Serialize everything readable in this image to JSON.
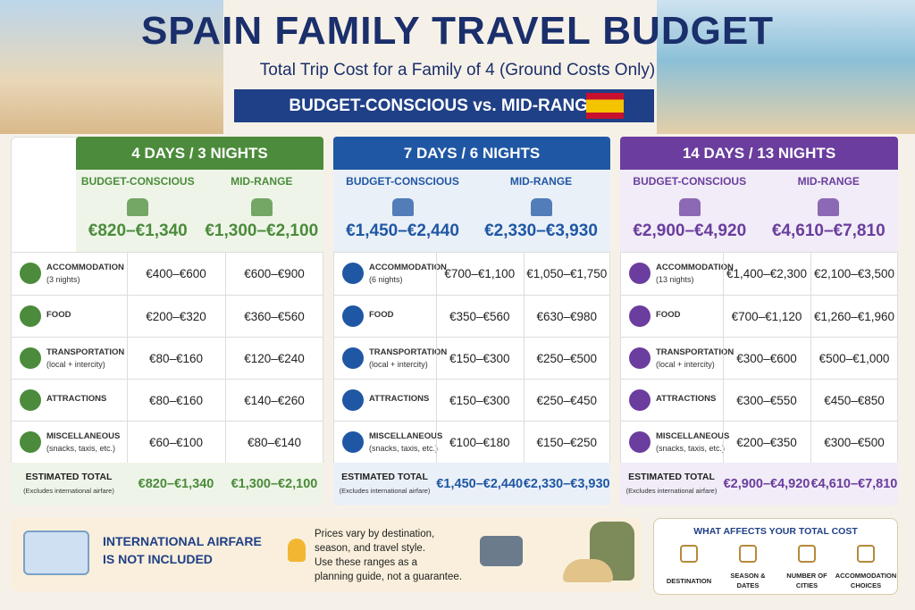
{
  "header": {
    "title": "SPAIN FAMILY TRAVEL BUDGET",
    "subtitle": "Total Trip Cost for a Family of 4 (Ground Costs Only)",
    "banner": "BUDGET-CONSCIOUS vs. MID-RANGE"
  },
  "plans": [
    {
      "title": "4 DAYS / 3 NIGHTS",
      "color": "#4b8b3b",
      "tint": "#eef5e8",
      "columns": [
        "BUDGET-CONSCIOUS",
        "MID-RANGE"
      ],
      "totals": [
        "€820–€1,340",
        "€1,300–€2,100"
      ],
      "rows": [
        {
          "label": "ACCOMMODATION",
          "note": "(3 nights)",
          "values": [
            "€400–€600",
            "€600–€900"
          ]
        },
        {
          "label": "FOOD",
          "values": [
            "€200–€320",
            "€360–€560"
          ]
        },
        {
          "label": "TRANSPORTATION",
          "note": "(local + intercity)",
          "values": [
            "€80–€160",
            "€120–€240"
          ]
        },
        {
          "label": "ATTRACTIONS",
          "values": [
            "€80–€160",
            "€140–€260"
          ]
        },
        {
          "label": "MISCELLANEOUS",
          "note": "(snacks, taxis, etc.)",
          "values": [
            "€60–€100",
            "€80–€140"
          ]
        }
      ],
      "total": {
        "label": "ESTIMATED TOTAL",
        "note": "(Excludes international airfare)",
        "values": [
          "€820–€1,340",
          "€1,300–€2,100"
        ]
      }
    },
    {
      "title": "7 DAYS / 6 NIGHTS",
      "color": "#1f57a4",
      "tint": "#eaf0f8",
      "columns": [
        "BUDGET-CONSCIOUS",
        "MID-RANGE"
      ],
      "totals": [
        "€1,450–€2,440",
        "€2,330–€3,930"
      ],
      "rows": [
        {
          "label": "ACCOMMODATION",
          "note": "(6 nights)",
          "values": [
            "€700–€1,100",
            "€1,050–€1,750"
          ]
        },
        {
          "label": "FOOD",
          "values": [
            "€350–€560",
            "€630–€980"
          ]
        },
        {
          "label": "TRANSPORTATION",
          "note": "(local + intercity)",
          "values": [
            "€150–€300",
            "€250–€500"
          ]
        },
        {
          "label": "ATTRACTIONS",
          "values": [
            "€150–€300",
            "€250–€450"
          ]
        },
        {
          "label": "MISCELLANEOUS",
          "note": "(snacks, taxis, etc.)",
          "values": [
            "€100–€180",
            "€150–€250"
          ]
        }
      ],
      "total": {
        "label": "ESTIMATED TOTAL",
        "note": "(Excludes international airfare)",
        "values": [
          "€1,450–€2,440",
          "€2,330–€3,930"
        ]
      }
    },
    {
      "title": "14 DAYS / 13 NIGHTS",
      "color": "#6a3d9e",
      "tint": "#f1ecf7",
      "columns": [
        "BUDGET-CONSCIOUS",
        "MID-RANGE"
      ],
      "totals": [
        "€2,900–€4,920",
        "€4,610–€7,810"
      ],
      "rows": [
        {
          "label": "ACCOMMODATION",
          "note": "(13 nights)",
          "values": [
            "€1,400–€2,300",
            "€2,100–€3,500"
          ]
        },
        {
          "label": "FOOD",
          "values": [
            "€700–€1,120",
            "€1,260–€1,960"
          ]
        },
        {
          "label": "TRANSPORTATION",
          "note": "(local + intercity)",
          "values": [
            "€300–€600",
            "€500–€1,000"
          ]
        },
        {
          "label": "ATTRACTIONS",
          "values": [
            "€300–€550",
            "€450–€850"
          ]
        },
        {
          "label": "MISCELLANEOUS",
          "note": "(snacks, taxis, etc.)",
          "values": [
            "€200–€350",
            "€300–€500"
          ]
        }
      ],
      "total": {
        "label": "ESTIMATED TOTAL",
        "note": "(Excludes international airfare)",
        "values": [
          "€2,900–€4,920",
          "€4,610–€7,810"
        ]
      }
    }
  ],
  "footer": {
    "airfare": [
      "INTERNATIONAL AIRFARE",
      "IS NOT INCLUDED"
    ],
    "tip": [
      "Prices vary by destination,",
      "season, and travel style.",
      "Use these ranges as a",
      "planning guide, not a guarantee."
    ],
    "factors": {
      "title": "WHAT AFFECTS YOUR TOTAL COST",
      "items": [
        [
          "DESTINATION"
        ],
        [
          "SEASON &",
          "DATES"
        ],
        [
          "NUMBER OF",
          "CITIES"
        ],
        [
          "ACCOMMODATION",
          "CHOICES"
        ]
      ]
    }
  }
}
